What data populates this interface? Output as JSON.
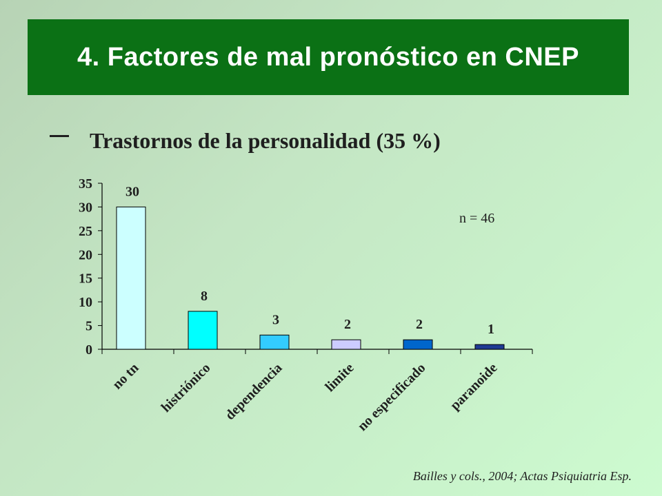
{
  "slide": {
    "title": "4. Factores de mal pronóstico en CNEP",
    "bullet": "Trastornos de la personalidad (35 %)",
    "annotation": "n = 46",
    "citation": "Bailles y cols., 2004; Actas Psiquiatria Esp."
  },
  "chart_data": {
    "type": "bar",
    "categories": [
      "no tn",
      "histriónico",
      "dependencia",
      "limite",
      "no especificado",
      "paranoide"
    ],
    "values": [
      30,
      8,
      3,
      2,
      2,
      1
    ],
    "bar_colors": [
      "#ccffff",
      "#00ffff",
      "#33ccff",
      "#ccccff",
      "#0066cc",
      "#1f3a93"
    ],
    "ylim": [
      0,
      35
    ],
    "yticks": [
      0,
      5,
      10,
      15,
      20,
      25,
      30,
      35
    ],
    "grid": false,
    "legend": "none",
    "title": "",
    "xlabel": "",
    "ylabel": ""
  }
}
